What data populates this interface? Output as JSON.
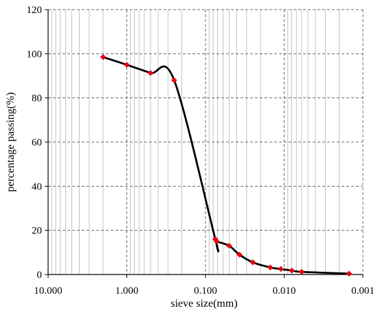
{
  "chart_data": {
    "type": "line",
    "title": "",
    "xlabel": "sieve size(mm)",
    "ylabel": "percentage passing(%)",
    "x_scale": "log",
    "x_reversed": true,
    "xlim": [
      10,
      0.001
    ],
    "ylim": [
      0,
      120
    ],
    "x_ticks": [
      10,
      1,
      0.1,
      0.01,
      0.001
    ],
    "x_tick_labels": [
      "10.000",
      "1.000",
      "0.100",
      "0.010",
      "0.001"
    ],
    "y_ticks": [
      0,
      20,
      40,
      60,
      80,
      100,
      120
    ],
    "y_tick_labels": [
      "0",
      "20",
      "40",
      "60",
      "80",
      "100",
      "120"
    ],
    "grid": {
      "major": true,
      "minor_x": true,
      "style": "dashed"
    },
    "legend": "none",
    "series": [
      {
        "x": [
          2,
          1,
          0.5,
          0.25,
          0.075,
          0.072,
          0.05,
          0.037,
          0.025,
          0.015,
          0.011,
          0.008,
          0.006,
          0.0015
        ],
        "y": [
          98.5,
          95,
          91.3,
          88,
          16,
          15,
          13,
          9,
          5.5,
          3.2,
          2.5,
          1.8,
          1.2,
          0.4
        ],
        "line_color": "#000000",
        "marker": "diamond",
        "marker_color": "#e8000b",
        "smooth": true
      }
    ]
  }
}
